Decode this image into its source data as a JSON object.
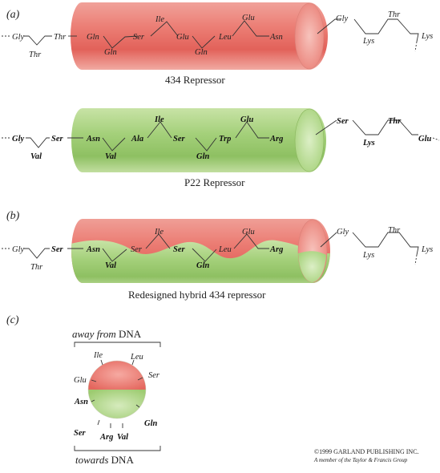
{
  "panels": {
    "a": "(a)",
    "b": "(b)",
    "c": "(c)"
  },
  "colors": {
    "red": "#e8706a",
    "green": "#9ccb6c"
  },
  "repressor_434": {
    "label": "434 Repressor",
    "left": [
      "Gly",
      "Thr",
      "Thr"
    ],
    "helix_top": [
      "Gln",
      "Ser",
      "Ile",
      "Glu",
      "Leu",
      "Glu",
      "Asn"
    ],
    "helix_bottom": [
      "Gln",
      "Gln"
    ],
    "right": [
      "Gly",
      "Lys",
      "Thr",
      "Lys"
    ]
  },
  "repressor_p22": {
    "label": "P22 Repressor",
    "left": [
      "Gly",
      "Val",
      "Ser"
    ],
    "helix_top": [
      "Asn",
      "Ala",
      "Ile",
      "Ser",
      "Trp",
      "Glu",
      "Arg"
    ],
    "helix_bottom": [
      "Val",
      "Gln"
    ],
    "right": [
      "Ser",
      "Lys",
      "Thr",
      "Glu"
    ]
  },
  "hybrid": {
    "label": "Redesigned hybrid 434 repressor",
    "left": [
      "Gly",
      "Thr",
      "Ser"
    ],
    "helix_top": [
      "Asn",
      "Ser",
      "Ile",
      "Ser",
      "Leu",
      "Glu",
      "Arg"
    ],
    "helix_bottom": [
      "Val",
      "Gln"
    ],
    "right": [
      "Gly",
      "Lys",
      "Thr",
      "Lys"
    ]
  },
  "wheel": {
    "top_prefix": "away from",
    "top_suffix": "DNA",
    "bottom_prefix": "towards",
    "bottom_suffix": "DNA",
    "residues": [
      "Ile",
      "Leu",
      "Ser",
      "Glu",
      "Asn",
      "Gln",
      "Ser",
      "Arg",
      "Val"
    ]
  },
  "copyright": {
    "line1": "©1999 GARLAND PUBLISHING INC.",
    "line2": "A member of the Taylor & Francis Group"
  }
}
